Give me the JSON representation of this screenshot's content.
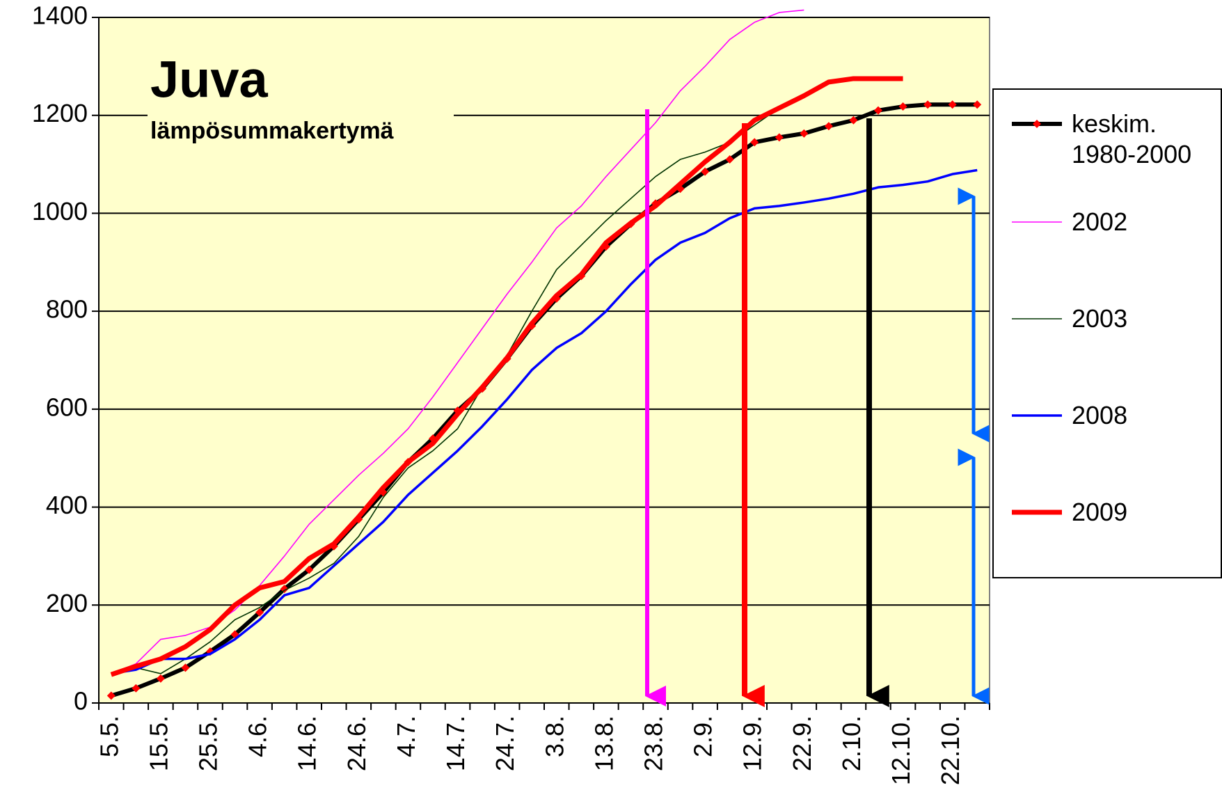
{
  "chart_data": {
    "type": "line",
    "title": "Juva",
    "subtitle": "lämpösummakertymä",
    "categories": [
      "5.5.",
      null,
      "15.5.",
      null,
      "25.5.",
      null,
      "4.6.",
      null,
      "14.6.",
      null,
      "24.6.",
      null,
      "4.7.",
      null,
      "14.7.",
      null,
      "24.7.",
      null,
      "3.8.",
      null,
      "13.8.",
      null,
      "23.8.",
      null,
      "2.9.",
      null,
      "12.9.",
      null,
      "22.9.",
      null,
      "2.10.",
      null,
      "12.10.",
      null,
      "22.10.",
      null
    ],
    "series": [
      {
        "name": "keskim. 1980-2000",
        "color": "#000000",
        "marker_color": "#ff0000",
        "values": [
          15,
          30,
          50,
          72,
          105,
          140,
          185,
          233,
          272,
          320,
          375,
          430,
          492,
          540,
          597,
          642,
          703,
          770,
          826,
          872,
          932,
          978,
          1020,
          1050,
          1085,
          1110,
          1145,
          1155,
          1163,
          1178,
          1190,
          1210,
          1218,
          1222,
          1222,
          1222
        ]
      },
      {
        "name": "2002",
        "color": "#ff00ff",
        "values": [
          60,
          80,
          130,
          138,
          155,
          190,
          240,
          300,
          365,
          415,
          465,
          510,
          560,
          625,
          695,
          765,
          835,
          900,
          970,
          1015,
          1075,
          1130,
          1185,
          1250,
          1300,
          1355,
          1390,
          1410,
          1415,
          null,
          null,
          null,
          null,
          null,
          null,
          null
        ]
      },
      {
        "name": "2003",
        "color": "#003300",
        "values": [
          60,
          72,
          60,
          90,
          125,
          170,
          195,
          230,
          255,
          285,
          340,
          420,
          480,
          515,
          560,
          645,
          710,
          800,
          885,
          935,
          985,
          1030,
          1075,
          1110,
          1125,
          1145,
          1180,
          1215,
          1240,
          1265,
          null,
          null,
          null,
          null,
          null,
          null
        ]
      },
      {
        "name": "2008",
        "color": "#0000ff",
        "values": [
          60,
          68,
          90,
          90,
          100,
          130,
          170,
          220,
          235,
          280,
          325,
          370,
          425,
          470,
          515,
          565,
          620,
          680,
          725,
          755,
          800,
          855,
          905,
          940,
          960,
          990,
          1010,
          1015,
          1022,
          1030,
          1040,
          1053,
          1058,
          1065,
          1080,
          1088
        ]
      },
      {
        "name": "2009",
        "color": "#ff0000",
        "values": [
          58,
          75,
          90,
          115,
          150,
          200,
          235,
          248,
          295,
          325,
          380,
          440,
          492,
          530,
          590,
          645,
          705,
          775,
          832,
          875,
          940,
          980,
          1015,
          1060,
          1105,
          1145,
          1190,
          1215,
          1240,
          1268,
          1275,
          1275,
          1275,
          null,
          null,
          null
        ]
      }
    ],
    "ylim": [
      0,
      1400
    ],
    "yticks": [
      0,
      200,
      400,
      600,
      800,
      1000,
      1200,
      1400
    ],
    "grid": true,
    "background": "#ffffcc"
  }
}
